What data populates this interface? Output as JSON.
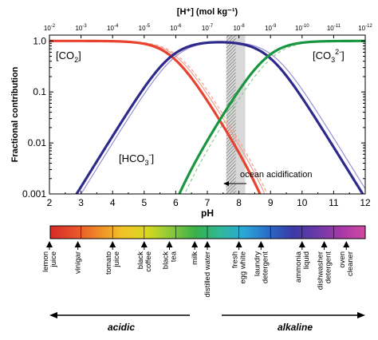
{
  "chart_data": {
    "type": "line",
    "top_axis_label": "[H⁺] (mol kg⁻¹)",
    "top_ticks": [
      {
        "value": 2,
        "mant": "10",
        "exp": "-2"
      },
      {
        "value": 3,
        "mant": "10",
        "exp": "-3"
      },
      {
        "value": 4,
        "mant": "10",
        "exp": "-4"
      },
      {
        "value": 5,
        "mant": "10",
        "exp": "-5"
      },
      {
        "value": 6,
        "mant": "10",
        "exp": "-6"
      },
      {
        "value": 7,
        "mant": "10",
        "exp": "-7"
      },
      {
        "value": 8,
        "mant": "10",
        "exp": "-8"
      },
      {
        "value": 9,
        "mant": "10",
        "exp": "-9"
      },
      {
        "value": 10,
        "mant": "10",
        "exp": "-10"
      },
      {
        "value": 11,
        "mant": "10",
        "exp": "-11"
      },
      {
        "value": 12,
        "mant": "10",
        "exp": "-12"
      }
    ],
    "xlabel": "pH",
    "ylabel": "Fractional contribution",
    "xlim": [
      2,
      12
    ],
    "ylim": [
      0.001,
      1.3
    ],
    "yscale": "log",
    "x_ticks": [
      "2",
      "3",
      "4",
      "5",
      "6",
      "7",
      "8",
      "9",
      "10",
      "11",
      "12"
    ],
    "y_ticks": [
      {
        "value": 1.0,
        "label": "1.0"
      },
      {
        "value": 0.1,
        "label": "0.1"
      },
      {
        "value": 0.01,
        "label": "0.01"
      },
      {
        "value": 0.001,
        "label": "0.001"
      }
    ],
    "series": [
      {
        "name": "CO2",
        "color": "#e8432e",
        "pK1": 5.86,
        "pK2": 8.92,
        "species": "co2",
        "width": 3.2
      },
      {
        "name": "HCO3",
        "color": "#2e2a8c",
        "pK1": 5.86,
        "pK2": 8.92,
        "species": "hco3",
        "width": 3.2
      },
      {
        "name": "CO3",
        "color": "#1a9640",
        "pK1": 5.86,
        "pK2": 8.92,
        "species": "co3",
        "width": 3.2
      },
      {
        "color": "#f0a090",
        "pK1": 6.0,
        "pK2": 9.1,
        "species": "co2",
        "width": 1.2
      },
      {
        "color": "#9a8ed0",
        "pK1": 6.0,
        "pK2": 9.1,
        "species": "hco3",
        "width": 1.2
      },
      {
        "color": "#8fcc8f",
        "pK1": 6.0,
        "pK2": 9.1,
        "species": "co3",
        "width": 1.2,
        "dash": "4,3"
      },
      {
        "color": "#f0a090",
        "pK1": 6.0,
        "pK2": 9.1,
        "species": "co2",
        "width": 1.2,
        "dash": "4,3",
        "offset": 0.08
      }
    ],
    "species_labels": {
      "co2": {
        "main": "[CO",
        "sub": "2",
        "close": "]"
      },
      "hco3": {
        "main": "[HCO",
        "sub": "3",
        "sup": "-",
        "close": "]"
      },
      "co3": {
        "main": "[CO",
        "sub": "3",
        "sup": "2-",
        "close": "]"
      }
    },
    "annotation": "ocean acidification",
    "shaded_band": {
      "x_from": 7.6,
      "x_to": 8.2
    }
  },
  "ph_scale": {
    "colors": [
      "#d62a2a",
      "#e8502a",
      "#f08a28",
      "#f2c428",
      "#d8d820",
      "#88c83a",
      "#38b04a",
      "#30b898",
      "#2aa8d8",
      "#2a6cc8",
      "#3a3aa8",
      "#6a3aa8",
      "#a838a8",
      "#d04aa0"
    ],
    "labels": [
      {
        "ph": 2.0,
        "lines": [
          "lemon",
          "juice"
        ]
      },
      {
        "ph": 2.9,
        "lines": [
          "vinigar"
        ]
      },
      {
        "ph": 4.0,
        "lines": [
          "tomato",
          "juice"
        ]
      },
      {
        "ph": 5.0,
        "lines": [
          "black",
          "coffee"
        ]
      },
      {
        "ph": 5.8,
        "lines": [
          "black",
          "tea"
        ]
      },
      {
        "ph": 6.6,
        "lines": [
          "milk"
        ]
      },
      {
        "ph": 7.0,
        "lines": [
          "distilled water"
        ]
      },
      {
        "ph": 8.0,
        "lines": [
          "fresh",
          "egg white"
        ]
      },
      {
        "ph": 8.7,
        "lines": [
          "laundry",
          "detergent"
        ]
      },
      {
        "ph": 10.0,
        "lines": [
          "ammonia",
          "liquid"
        ]
      },
      {
        "ph": 10.7,
        "lines": [
          "dishwasher",
          "detergent"
        ]
      },
      {
        "ph": 11.4,
        "lines": [
          "oven",
          "cleaner"
        ]
      }
    ],
    "acidic_label": "acidic",
    "alkaline_label": "alkaline"
  }
}
